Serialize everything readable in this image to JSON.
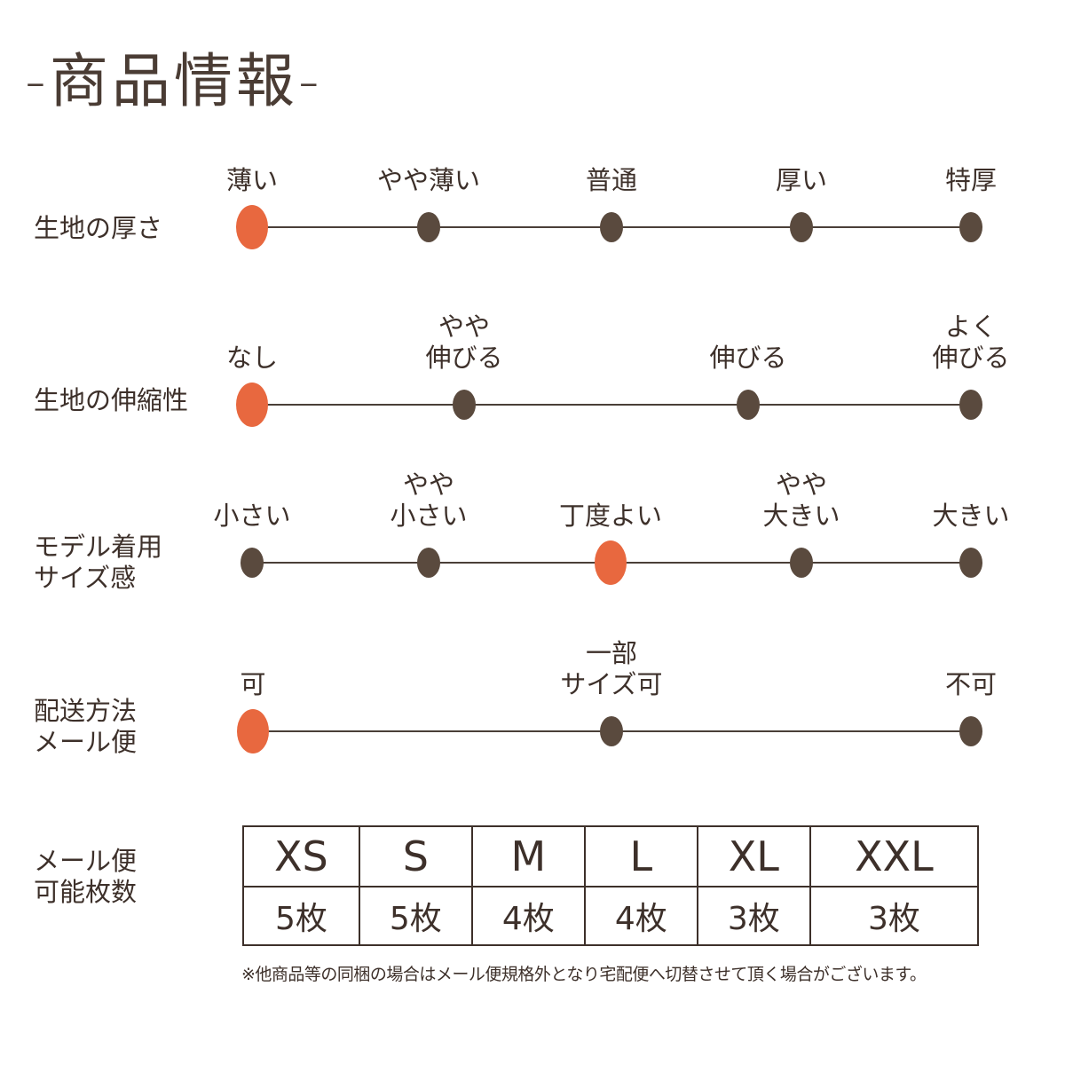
{
  "title": "-商品情報-",
  "colors": {
    "selected": "#e8683f",
    "dot": "#5a4a3e",
    "text": "#3d302a"
  },
  "scales": [
    {
      "label": "生地の厚さ",
      "options": [
        "薄い",
        "やや薄い",
        "普通",
        "厚い",
        "特厚"
      ],
      "selected": 0
    },
    {
      "label": "生地の伸縮性",
      "options": [
        "なし",
        "やや\n伸びる",
        "伸びる",
        "よく\n伸びる"
      ],
      "selected": 0
    },
    {
      "label": "モデル着用\nサイズ感",
      "options": [
        "小さい",
        "やや\n小さい",
        "丁度よい",
        "やや\n大きい",
        "大きい"
      ],
      "selected": 2
    },
    {
      "label": "配送方法\nメール便",
      "options": [
        "可",
        "一部\nサイズ可",
        "不可"
      ],
      "selected": 0
    }
  ],
  "mail_table": {
    "label": "メール便\n可能枚数",
    "sizes": [
      "XS",
      "S",
      "M",
      "L",
      "XL",
      "XXL"
    ],
    "counts": [
      "5枚",
      "5枚",
      "4枚",
      "4枚",
      "3枚",
      "3枚"
    ]
  },
  "note": "※他商品等の同梱の場合はメール便規格外となり宅配便へ切替させて頂く場合がございます。"
}
